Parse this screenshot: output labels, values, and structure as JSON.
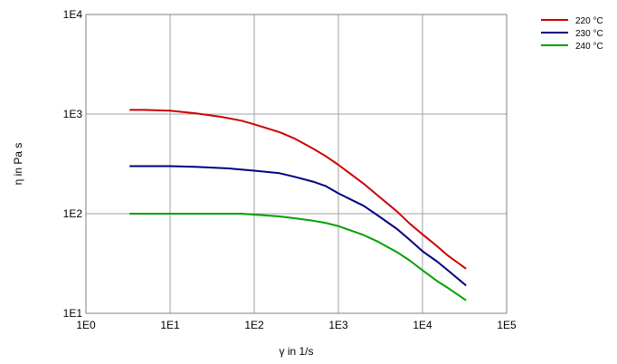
{
  "chart_data": {
    "type": "line",
    "title": "",
    "xlabel": "γ in 1/s",
    "ylabel": "η in Pa s",
    "xscale": "log",
    "yscale": "log",
    "xlim": [
      1,
      100000
    ],
    "ylim": [
      10,
      10000
    ],
    "grid": true,
    "legend_position": "top-right",
    "x_ticks": [
      {
        "value": 1,
        "label": "1E0"
      },
      {
        "value": 10,
        "label": "1E1"
      },
      {
        "value": 100,
        "label": "1E2"
      },
      {
        "value": 1000,
        "label": "1E3"
      },
      {
        "value": 10000,
        "label": "1E4"
      },
      {
        "value": 100000,
        "label": "1E5"
      }
    ],
    "y_ticks": [
      {
        "value": 10,
        "label": "1E1"
      },
      {
        "value": 100,
        "label": "1E2"
      },
      {
        "value": 1000,
        "label": "1E3"
      },
      {
        "value": 10000,
        "label": "1E4"
      }
    ],
    "series": [
      {
        "name": "220 °C",
        "color": "#cc0000",
        "points": [
          [
            3.3,
            1100
          ],
          [
            5,
            1100
          ],
          [
            10,
            1080
          ],
          [
            20,
            1020
          ],
          [
            40,
            940
          ],
          [
            70,
            860
          ],
          [
            100,
            790
          ],
          [
            200,
            660
          ],
          [
            300,
            570
          ],
          [
            500,
            450
          ],
          [
            700,
            380
          ],
          [
            1000,
            310
          ],
          [
            2000,
            200
          ],
          [
            3000,
            150
          ],
          [
            5000,
            105
          ],
          [
            7000,
            80
          ],
          [
            10000,
            62
          ],
          [
            15000,
            47
          ],
          [
            20000,
            38
          ],
          [
            33000,
            28
          ]
        ]
      },
      {
        "name": "230 °C",
        "color": "#000080",
        "points": [
          [
            3.3,
            300
          ],
          [
            10,
            300
          ],
          [
            20,
            295
          ],
          [
            50,
            285
          ],
          [
            100,
            270
          ],
          [
            200,
            255
          ],
          [
            300,
            235
          ],
          [
            500,
            210
          ],
          [
            700,
            190
          ],
          [
            1000,
            160
          ],
          [
            2000,
            120
          ],
          [
            3000,
            95
          ],
          [
            5000,
            70
          ],
          [
            7000,
            55
          ],
          [
            10000,
            42
          ],
          [
            15000,
            33
          ],
          [
            20000,
            27
          ],
          [
            33000,
            19
          ]
        ]
      },
      {
        "name": "240 °C",
        "color": "#00a000",
        "points": [
          [
            3.3,
            100
          ],
          [
            10,
            100
          ],
          [
            30,
            100
          ],
          [
            70,
            100
          ],
          [
            100,
            98
          ],
          [
            200,
            94
          ],
          [
            300,
            90
          ],
          [
            500,
            85
          ],
          [
            700,
            81
          ],
          [
            1000,
            75
          ],
          [
            2000,
            61
          ],
          [
            3000,
            52
          ],
          [
            5000,
            41
          ],
          [
            7000,
            34
          ],
          [
            10000,
            27
          ],
          [
            15000,
            21
          ],
          [
            20000,
            18
          ],
          [
            33000,
            13.5
          ]
        ]
      }
    ]
  }
}
